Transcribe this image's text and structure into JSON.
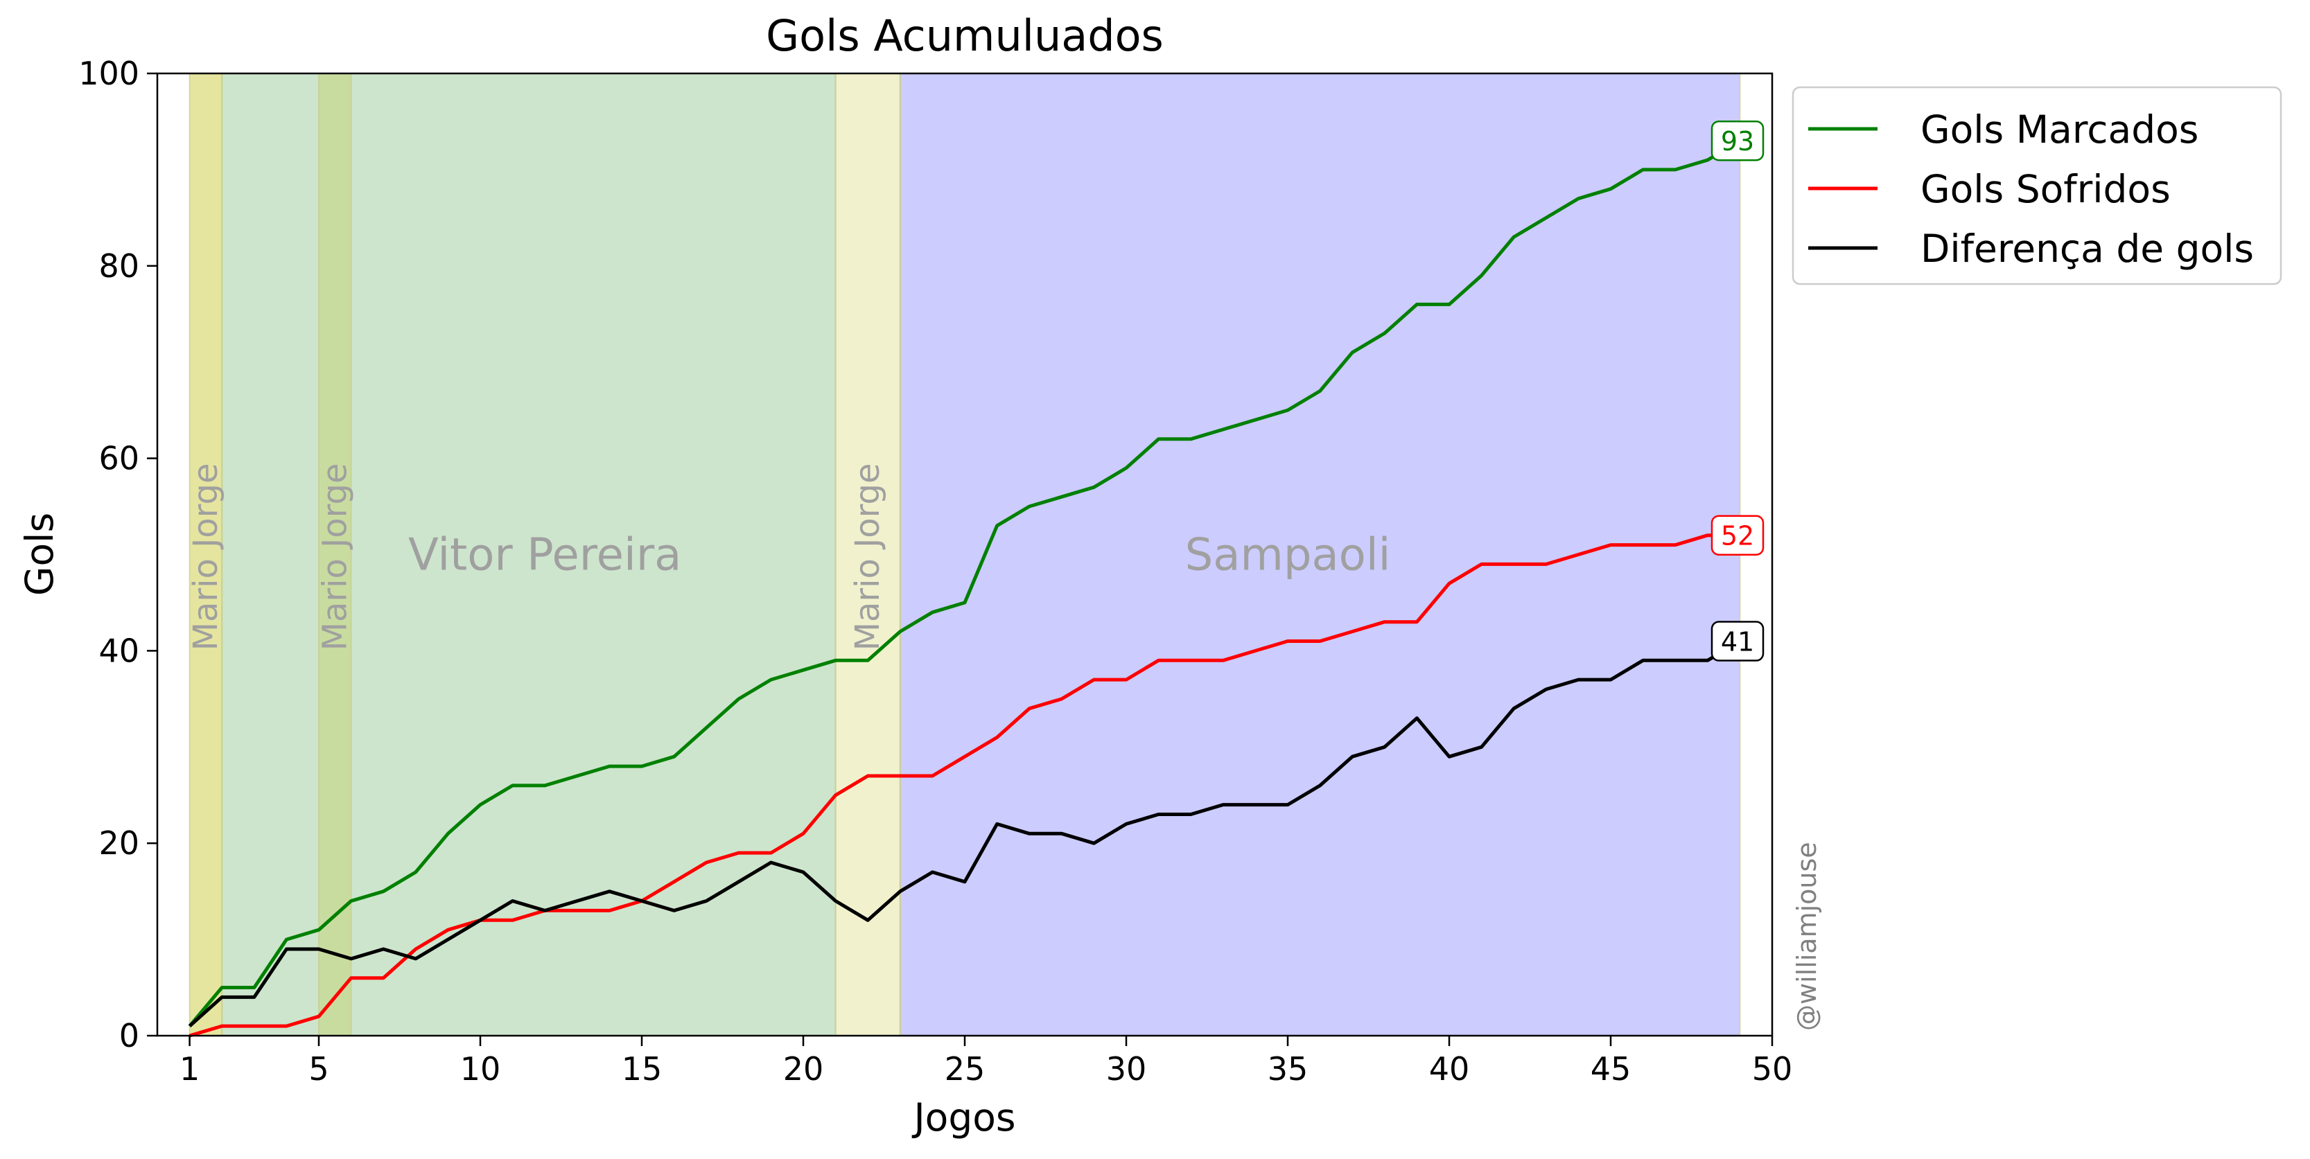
{
  "chart_data": {
    "type": "line",
    "title": "Gols Acumuluados",
    "xlabel": "Jogos",
    "ylabel": "Gols",
    "xlim": [
      0,
      50
    ],
    "ylim": [
      0,
      100
    ],
    "x_ticks": [
      1,
      5,
      10,
      15,
      20,
      25,
      30,
      35,
      40,
      45,
      50
    ],
    "y_ticks": [
      0,
      20,
      40,
      60,
      80,
      100
    ],
    "legend_position": "outside-top-right",
    "watermark": "@williamjouse",
    "x": [
      1,
      2,
      3,
      4,
      5,
      6,
      7,
      8,
      9,
      10,
      11,
      12,
      13,
      14,
      15,
      16,
      17,
      18,
      19,
      20,
      21,
      22,
      23,
      24,
      25,
      26,
      27,
      28,
      29,
      30,
      31,
      32,
      33,
      34,
      35,
      36,
      37,
      38,
      39,
      40,
      41,
      42,
      43,
      44,
      45,
      46,
      47,
      48,
      49
    ],
    "series": [
      {
        "name": "Gols Marcados",
        "color": "#008000",
        "values": [
          1,
          5,
          5,
          10,
          11,
          14,
          15,
          17,
          21,
          24,
          26,
          26,
          27,
          28,
          28,
          29,
          32,
          35,
          37,
          38,
          39,
          39,
          42,
          44,
          45,
          53,
          55,
          56,
          57,
          59,
          62,
          62,
          63,
          64,
          65,
          67,
          71,
          73,
          76,
          76,
          79,
          83,
          85,
          87,
          88,
          90,
          90,
          91,
          93
        ],
        "end_label": "93"
      },
      {
        "name": "Gols Sofridos",
        "color": "#ff0000",
        "values": [
          0,
          1,
          1,
          1,
          2,
          6,
          6,
          9,
          11,
          12,
          12,
          13,
          13,
          13,
          14,
          16,
          18,
          19,
          19,
          21,
          25,
          27,
          27,
          27,
          29,
          31,
          34,
          35,
          37,
          37,
          39,
          39,
          39,
          40,
          41,
          41,
          42,
          43,
          43,
          47,
          49,
          49,
          49,
          50,
          51,
          51,
          51,
          52,
          52
        ],
        "end_label": "52"
      },
      {
        "name": "Diferença de gols",
        "color": "#000000",
        "values": [
          1,
          4,
          4,
          9,
          9,
          8,
          9,
          8,
          10,
          12,
          14,
          13,
          14,
          15,
          14,
          13,
          14,
          16,
          18,
          17,
          14,
          12,
          15,
          17,
          16,
          22,
          21,
          21,
          20,
          22,
          23,
          23,
          24,
          24,
          24,
          26,
          29,
          30,
          33,
          29,
          30,
          34,
          36,
          37,
          37,
          39,
          39,
          39,
          41
        ],
        "end_label": "41"
      }
    ],
    "periods": [
      {
        "label": "Mario Jorge",
        "start": 1,
        "end": 2,
        "color": "#e5e5a0",
        "label_vertical": true
      },
      {
        "label": "Vitor Pereira",
        "start": 2,
        "end": 21,
        "color": "#cde5cd",
        "label_vertical": false
      },
      {
        "label": "Mario Jorge",
        "start": 5,
        "end": 6,
        "color": "#c9dca0",
        "label_vertical": true
      },
      {
        "label": "Mario Jorge",
        "start": 21,
        "end": 23,
        "color": "#f1f2cd",
        "label_vertical": true
      },
      {
        "label": "Sampaoli",
        "start": 23,
        "end": 49,
        "color": "#ccccff",
        "label_vertical": false
      }
    ]
  }
}
